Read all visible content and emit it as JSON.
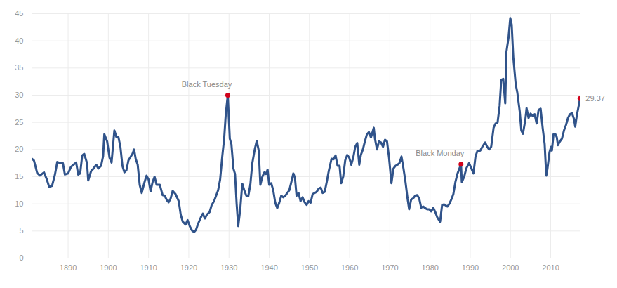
{
  "chart_data": {
    "type": "line",
    "x": [
      1881,
      1881.5,
      1882.3,
      1883,
      1884,
      1884.7,
      1885.3,
      1886,
      1886.7,
      1887.3,
      1888,
      1888.7,
      1889.2,
      1890,
      1890.7,
      1891.5,
      1892,
      1892.5,
      1893,
      1893.5,
      1894,
      1894.7,
      1895,
      1895.7,
      1896.3,
      1897,
      1897.5,
      1898.2,
      1898.7,
      1899,
      1899.7,
      1900.3,
      1900.8,
      1901.5,
      1902,
      1902.5,
      1903,
      1903.5,
      1904,
      1904.5,
      1905,
      1906,
      1906.4,
      1906.8,
      1907.3,
      1907.8,
      1908.3,
      1909,
      1909.5,
      1910,
      1910.5,
      1911,
      1911.5,
      1912,
      1912.8,
      1913.5,
      1914,
      1914.6,
      1915,
      1915.5,
      1916,
      1916.7,
      1917.5,
      1918,
      1918.5,
      1919.2,
      1919.7,
      1920.3,
      1920.8,
      1921.3,
      1921.8,
      1922.3,
      1923,
      1923.5,
      1924,
      1924.5,
      1925.2,
      1925.7,
      1926.3,
      1926.8,
      1927.3,
      1927.8,
      1928.3,
      1928.8,
      1929.2,
      1929.7,
      1930.2,
      1930.6,
      1931.1,
      1931.5,
      1931.9,
      1932.3,
      1932.8,
      1933.3,
      1933.8,
      1934.3,
      1934.8,
      1935.3,
      1935.8,
      1936.4,
      1936.9,
      1937.4,
      1937.8,
      1938.3,
      1938.8,
      1939.2,
      1939.6,
      1940,
      1940.5,
      1941,
      1941.5,
      1942,
      1942.5,
      1943,
      1943.5,
      1944,
      1944.5,
      1945,
      1945.5,
      1946,
      1946.4,
      1946.8,
      1947.3,
      1947.8,
      1948.3,
      1948.8,
      1949.3,
      1949.8,
      1950.3,
      1950.8,
      1951.3,
      1951.8,
      1952.3,
      1952.8,
      1953.3,
      1953.8,
      1954.3,
      1954.8,
      1955.5,
      1956,
      1956.5,
      1957,
      1957.5,
      1957.9,
      1958.4,
      1958.9,
      1959.4,
      1959.9,
      1960.4,
      1960.9,
      1961.4,
      1961.9,
      1962.4,
      1962.8,
      1963.3,
      1963.8,
      1964.3,
      1964.8,
      1965.3,
      1966,
      1966.3,
      1966.8,
      1967.3,
      1967.8,
      1968.3,
      1968.8,
      1969.3,
      1969.8,
      1970.4,
      1970.9,
      1971.4,
      1971.9,
      1972.4,
      1972.9,
      1973.4,
      1973.9,
      1974.4,
      1974.8,
      1975.3,
      1975.8,
      1976.3,
      1976.8,
      1977.3,
      1977.8,
      1978.3,
      1978.8,
      1979.3,
      1979.8,
      1980.3,
      1980.8,
      1981.3,
      1981.8,
      1982.5,
      1983,
      1983.5,
      1984.3,
      1984.8,
      1985.3,
      1985.8,
      1986.3,
      1986.8,
      1987.7,
      1987.9,
      1988.5,
      1989,
      1989.7,
      1990.3,
      1990.8,
      1991.3,
      1991.8,
      1992.5,
      1993,
      1993.7,
      1994.2,
      1994.7,
      1995.2,
      1995.8,
      1996.3,
      1996.8,
      1997.3,
      1997.7,
      1998.2,
      1998.7,
      1999,
      1999.5,
      1999.95,
      2000.3,
      2000.7,
      2001.3,
      2001.7,
      2002.3,
      2002.7,
      2003.1,
      2003.7,
      2004,
      2004.5,
      2005,
      2005.5,
      2006,
      2006.5,
      2007,
      2007.5,
      2008,
      2008.5,
      2008.9,
      2009.2,
      2009.7,
      2010.1,
      2010.3,
      2010.7,
      2011.1,
      2011.5,
      2011.8,
      2012.3,
      2012.8,
      2013.3,
      2013.8,
      2014.3,
      2014.8,
      2015.3,
      2015.8,
      2016.1,
      2016.5,
      2016.9,
      2017.3
    ],
    "values": [
      18.3,
      18.0,
      15.7,
      15.2,
      15.8,
      14.5,
      13.1,
      13.3,
      15.3,
      17.7,
      17.5,
      17.5,
      15.4,
      15.6,
      16.8,
      17.3,
      17.6,
      15.4,
      15.6,
      18.9,
      19.2,
      17.5,
      14.3,
      16.0,
      16.5,
      17.2,
      16.5,
      17.0,
      18.8,
      22.8,
      21.5,
      18.5,
      17.6,
      23.5,
      22.3,
      22.3,
      20.5,
      17.0,
      15.8,
      16.2,
      18.0,
      19.2,
      20.0,
      18.3,
      17.2,
      13.5,
      12.0,
      14.0,
      15.2,
      14.5,
      12.3,
      14.0,
      15.0,
      13.5,
      13.5,
      11.6,
      11.5,
      10.6,
      10.3,
      11.0,
      12.4,
      11.8,
      10.5,
      8.0,
      6.7,
      6.2,
      7.0,
      5.8,
      5.1,
      4.8,
      5.2,
      6.3,
      7.5,
      8.2,
      7.3,
      8.0,
      8.5,
      9.8,
      10.5,
      11.5,
      12.5,
      14.5,
      18.5,
      22.0,
      26.5,
      30.0,
      22.0,
      21.0,
      16.5,
      15.5,
      10.0,
      5.9,
      9.0,
      13.7,
      12.5,
      11.5,
      11.4,
      13.5,
      17.5,
      20.0,
      21.6,
      19.8,
      13.5,
      15.0,
      15.8,
      15.5,
      16.3,
      13.5,
      13.8,
      12.5,
      10.2,
      9.2,
      10.2,
      11.5,
      11.2,
      11.5,
      12.0,
      12.5,
      14.0,
      15.6,
      14.8,
      11.5,
      12.0,
      10.5,
      11.2,
      10.3,
      9.8,
      10.5,
      10.2,
      11.8,
      12.0,
      12.2,
      12.8,
      13.0,
      12.0,
      12.2,
      14.0,
      16.0,
      18.3,
      18.2,
      18.9,
      17.0,
      17.0,
      13.8,
      15.0,
      18.0,
      19.0,
      18.5,
      17.2,
      18.5,
      20.5,
      21.2,
      17.2,
      19.0,
      20.0,
      21.5,
      22.8,
      23.2,
      22.2,
      24.0,
      22.0,
      20.0,
      21.5,
      21.3,
      20.5,
      21.8,
      21.5,
      18.5,
      13.8,
      16.5,
      17.0,
      17.2,
      17.5,
      18.7,
      16.5,
      14.0,
      11.0,
      9.0,
      10.8,
      11.0,
      11.5,
      11.6,
      11.0,
      9.3,
      9.5,
      9.2,
      9.0,
      9.0,
      8.6,
      9.3,
      8.5,
      7.5,
      6.7,
      9.8,
      9.9,
      9.5,
      10.0,
      10.8,
      11.8,
      14.0,
      15.5,
      17.3,
      14.0,
      15.0,
      16.5,
      17.5,
      16.5,
      15.6,
      18.7,
      19.8,
      19.8,
      20.5,
      21.3,
      20.5,
      20.0,
      20.5,
      24.0,
      24.8,
      25.0,
      28.0,
      32.8,
      33.0,
      28.5,
      38.0,
      40.5,
      44.2,
      43.0,
      37.0,
      32.0,
      30.5,
      27.0,
      23.5,
      22.9,
      25.5,
      27.6,
      25.8,
      26.6,
      26.2,
      26.5,
      24.8,
      27.3,
      27.5,
      24.0,
      21.0,
      15.2,
      16.5,
      19.5,
      20.5,
      19.8,
      22.8,
      22.9,
      22.3,
      20.8,
      21.5,
      22.0,
      23.5,
      24.5,
      25.8,
      26.5,
      26.7,
      25.6,
      24.2,
      26.3,
      27.8,
      29.37
    ],
    "color": "#30538a",
    "xlim": [
      1881,
      2017.5
    ],
    "xticks": [
      1890,
      1900,
      1910,
      1920,
      1930,
      1940,
      1950,
      1960,
      1970,
      1980,
      1990,
      2000,
      2010
    ],
    "ylim": [
      0,
      45
    ],
    "yticks": [
      0,
      5,
      10,
      15,
      20,
      25,
      30,
      35,
      40,
      45
    ],
    "grid": true,
    "annotations": [
      {
        "x": 1929.7,
        "y": 30.0,
        "label": "Black Tuesday",
        "color": "#d0021b"
      },
      {
        "x": 1987.7,
        "y": 17.3,
        "label": "Black Monday",
        "color": "#d0021b"
      },
      {
        "x": 2017.3,
        "y": 29.37,
        "label": "29.37",
        "color": "#d0021b"
      }
    ]
  }
}
